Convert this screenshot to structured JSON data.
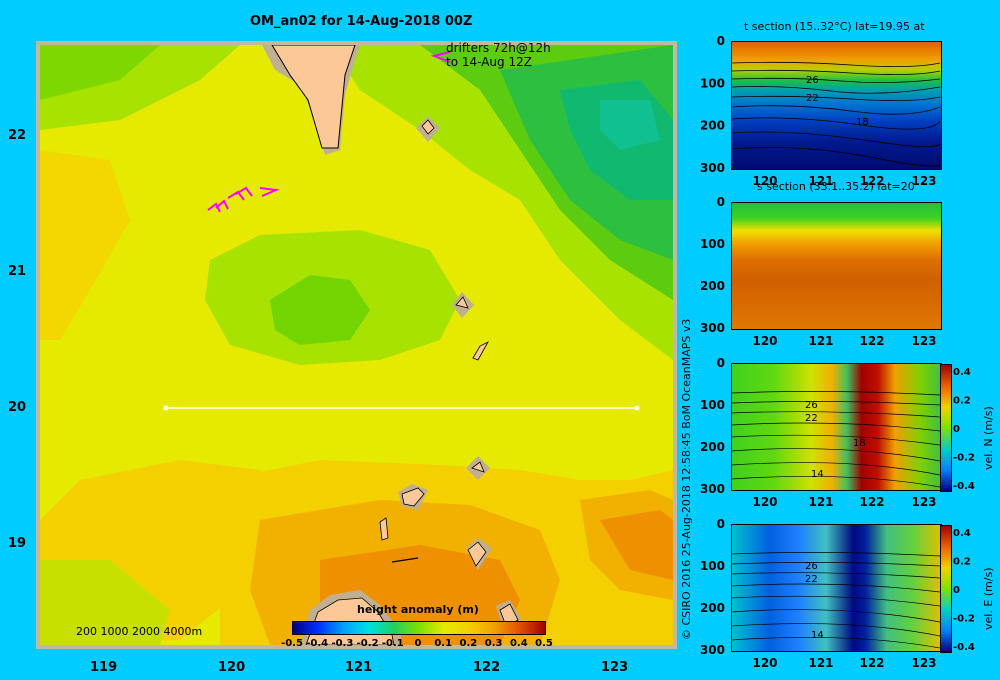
{
  "main": {
    "title": "OM_an02 for 14-Aug-2018 00Z",
    "drifter_label_1": "drifters 72h@12h",
    "drifter_label_2": "to 14-Aug 12Z",
    "depth_legend": "200  1000  2000  4000m",
    "colorbar_title": "height anomaly  (m)"
  },
  "credit": "© CSIRO 2016   25-Aug-2018 12:58:45 BoM OceanMAPS v3",
  "panels": {
    "t_title": "t section (15..32°C) lat=19.95 at",
    "s_title": "s section (33.1..35.2) lat=20",
    "n_label": "vel. N (m/s)",
    "e_label": "vel. E (m/s)"
  },
  "contour_labels": {
    "t": [
      "26",
      "22",
      "18"
    ],
    "n": [
      "26",
      "22",
      "18",
      "14"
    ],
    "e": [
      "26",
      "22",
      "14"
    ]
  },
  "chart_data": [
    {
      "type": "heatmap",
      "title": "OM_an02 for 14-Aug-2018 00Z",
      "xlabel": "",
      "ylabel": "",
      "x_ticks": [
        "119",
        "120",
        "121",
        "122",
        "123"
      ],
      "y_ticks": [
        "22",
        "21",
        "20",
        "19"
      ],
      "colorbar": {
        "label": "height anomaly  (m)",
        "ticks": [
          "-0.5",
          "-0.4",
          "-0.3",
          "-0.2",
          "-0.1",
          "0",
          "0.1",
          "0.2",
          "0.3",
          "0.4",
          "0.5"
        ],
        "range": [
          -0.5,
          0.5
        ]
      },
      "section_line": {
        "lon": [
          119.5,
          123.2
        ],
        "lat": 20.0
      },
      "colors": {
        "background": "#00ccff",
        "land": "#fcc898",
        "shelf": "#c8b090",
        "drifter": "#ff00ff",
        "section_line": "#ffffff"
      }
    },
    {
      "type": "heatmap",
      "title": "t section (15..32°C) lat=19.95 at",
      "x_ticks": [
        "120",
        "121",
        "122",
        "123"
      ],
      "y_ticks": [
        "0",
        "100",
        "200",
        "300"
      ],
      "ylim": [
        300,
        0
      ]
    },
    {
      "type": "heatmap",
      "title": "s section (33.1..35.2) lat=20",
      "x_ticks": [
        "120",
        "121",
        "122",
        "123"
      ],
      "y_ticks": [
        "0",
        "100",
        "200",
        "300"
      ],
      "ylim": [
        300,
        0
      ]
    },
    {
      "type": "heatmap",
      "title": "",
      "x_ticks": [
        "120",
        "121",
        "122",
        "123"
      ],
      "y_ticks": [
        "0",
        "100",
        "200",
        "300"
      ],
      "colorbar": {
        "label": "vel. N (m/s)",
        "ticks": [
          "0.4",
          "0.2",
          "0",
          "-0.2",
          "-0.4"
        ]
      }
    },
    {
      "type": "heatmap",
      "title": "",
      "x_ticks": [
        "120",
        "121",
        "122",
        "123"
      ],
      "y_ticks": [
        "0",
        "100",
        "200",
        "300"
      ],
      "colorbar": {
        "label": "vel. E (m/s)",
        "ticks": [
          "0.4",
          "0.2",
          "0",
          "-0.2",
          "-0.4"
        ]
      }
    }
  ]
}
